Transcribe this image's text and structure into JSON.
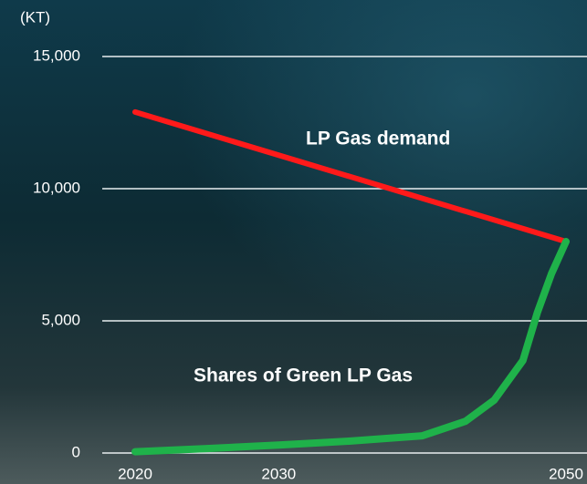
{
  "chart_data": {
    "type": "line",
    "y_label": "(KT)",
    "annotations": [
      "LP Gas demand",
      "Shares of Green LP Gas"
    ],
    "xlim": [
      2020,
      2050
    ],
    "xticks": [
      2020,
      2030,
      2050
    ],
    "ylim": [
      0,
      15000
    ],
    "yticks": [
      0,
      {
        "value": 5000,
        "label": "5,000"
      },
      {
        "value": 10000,
        "label": "10,000"
      },
      {
        "value": 15000,
        "label": "15,000"
      }
    ],
    "grid": true,
    "series": [
      {
        "name": "LP Gas demand",
        "color": "#ff1a1a",
        "x": [
          2020,
          2050
        ],
        "values": [
          12900,
          8000
        ]
      },
      {
        "name": "Shares of Green LP Gas",
        "color": "#1fb24a",
        "x": [
          2020,
          2025,
          2030,
          2035,
          2040,
          2043,
          2045,
          2047,
          2048,
          2049,
          2050
        ],
        "values": [
          50,
          170,
          300,
          450,
          650,
          1200,
          2000,
          3500,
          5300,
          6800,
          8000
        ]
      }
    ]
  }
}
